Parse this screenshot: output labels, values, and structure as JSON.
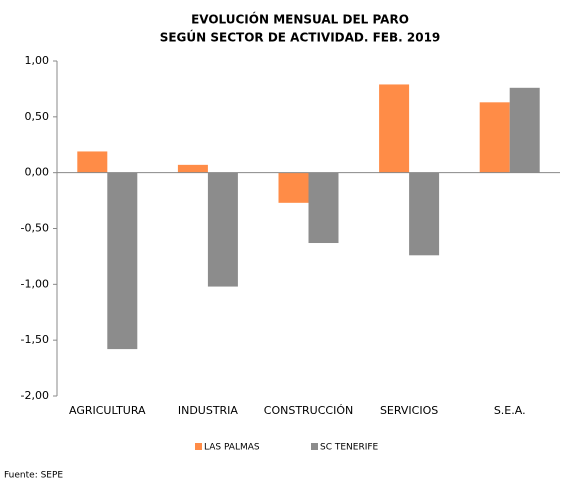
{
  "chart_data": {
    "type": "bar",
    "title": "EVOLUCIÓN MENSUAL DEL PARO",
    "subtitle": "SEGÚN SECTOR DE ACTIVIDAD. FEB. 2019",
    "categories": [
      "AGRICULTURA",
      "INDUSTRIA",
      "CONSTRUCCIÓN",
      "SERVICIOS",
      "S.E.A."
    ],
    "series": [
      {
        "name": "LAS PALMAS",
        "color": "#ff8c47",
        "values": [
          0.19,
          0.07,
          -0.27,
          0.79,
          0.63
        ]
      },
      {
        "name": "SC TENERIFE",
        "color": "#8c8c8c",
        "values": [
          -1.58,
          -1.02,
          -0.63,
          -0.74,
          0.76
        ]
      }
    ],
    "ylim": [
      -2,
      1
    ],
    "yticks": [
      {
        "value": 1,
        "label": "1,00"
      },
      {
        "value": 0.5,
        "label": "0,50"
      },
      {
        "value": 0,
        "label": "0,00"
      },
      {
        "value": -0.5,
        "label": "-0,50"
      },
      {
        "value": -1,
        "label": "-1,00"
      },
      {
        "value": -1.5,
        "label": "-1,50"
      },
      {
        "value": -2,
        "label": "-2,00"
      }
    ],
    "legend": "bottom",
    "grid": false,
    "source": "Fuente: SEPE"
  }
}
